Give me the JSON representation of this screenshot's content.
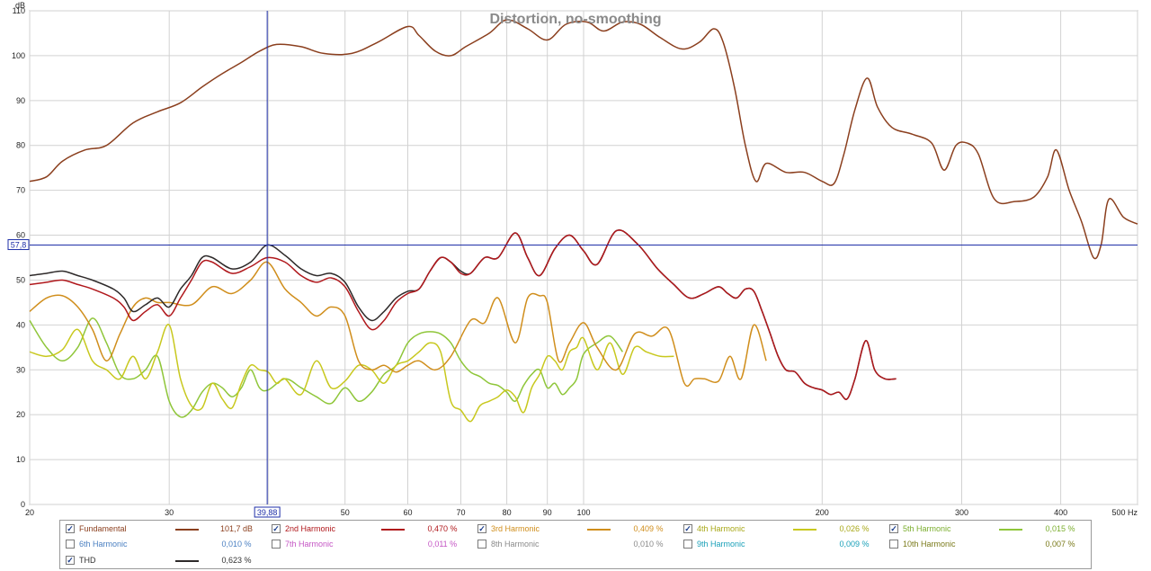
{
  "chart_data": {
    "type": "line",
    "title": "Distortion, no-smoothing",
    "ylabel": "dB",
    "xunit": "Hz",
    "xscale": "log",
    "xlim": [
      20,
      500
    ],
    "ylim": [
      0,
      110
    ],
    "grid": true,
    "x_ticks": [
      20,
      30,
      40,
      50,
      60,
      70,
      80,
      90,
      100,
      200,
      300,
      400,
      500
    ],
    "x_tick_labels": [
      "20",
      "30",
      "",
      "50",
      "60",
      "70",
      "80",
      "90",
      "100",
      "200",
      "300",
      "400",
      "500 Hz"
    ],
    "y_ticks": [
      0,
      10,
      20,
      30,
      40,
      50,
      60,
      70,
      80,
      90,
      100,
      110
    ],
    "cursor": {
      "x": 39.88,
      "y": 57.8,
      "x_label": "39,88",
      "y_label": "57,8",
      "color": "#1f2fa8"
    },
    "series": [
      {
        "name": "Fundamental",
        "color": "#8b3f1e",
        "x": [
          20,
          21,
          22,
          23.5,
          25,
          27,
          29,
          31,
          33,
          35,
          37,
          39,
          41,
          44,
          47,
          51,
          55,
          60,
          62,
          65,
          68,
          71,
          76,
          80,
          85,
          90,
          95,
          101,
          106,
          112,
          118,
          125,
          133,
          140,
          146,
          150,
          155,
          160,
          165,
          170,
          180,
          190,
          200,
          207,
          213,
          220,
          228,
          235,
          245,
          260,
          275,
          285,
          295,
          305,
          315,
          330,
          350,
          370,
          385,
          395,
          410,
          425,
          440,
          450,
          460,
          480,
          500
        ],
        "y": [
          72,
          73,
          76.5,
          79,
          80,
          85,
          87.5,
          89.5,
          93,
          96,
          98.5,
          101,
          102.5,
          102,
          100.5,
          100.5,
          103,
          106.5,
          104.5,
          101,
          100,
          102,
          105,
          108,
          106,
          103.5,
          107,
          107.5,
          105.5,
          107.5,
          107,
          104,
          101.5,
          103,
          106,
          103,
          93,
          80,
          72,
          76,
          74,
          74,
          72,
          71.5,
          78,
          88,
          95,
          88.5,
          84,
          82.5,
          80.5,
          74.5,
          80,
          80.5,
          78,
          68,
          67.5,
          68.5,
          73,
          79,
          70,
          63,
          55,
          58,
          68,
          64,
          62.5
        ]
      },
      {
        "name": "2nd Harmonic",
        "color": "#b0181c",
        "x": [
          20,
          21,
          22,
          23,
          24,
          25.5,
          26.3,
          27,
          28,
          29,
          30,
          31,
          32,
          33,
          34,
          36,
          38,
          39.88,
          42,
          44,
          46,
          48,
          50,
          52,
          54,
          56,
          58,
          60,
          62,
          64,
          66,
          68,
          70,
          72,
          75,
          78,
          82,
          85,
          88,
          92,
          96,
          100,
          104,
          110,
          117,
          124,
          130,
          136,
          142,
          148,
          152,
          156,
          160,
          164,
          168,
          172,
          176,
          180,
          185,
          190,
          195,
          200,
          205,
          210,
          215,
          220,
          227,
          233,
          240,
          248
        ],
        "y": [
          49,
          49.5,
          50,
          49,
          48,
          46,
          44,
          41,
          43,
          44.5,
          42,
          46,
          50,
          54,
          54,
          51.5,
          53,
          55,
          54,
          51,
          49.5,
          50.5,
          48.5,
          43,
          39,
          41,
          45,
          47,
          48,
          52,
          55,
          54,
          51.5,
          51.5,
          55,
          55,
          60.5,
          55,
          51,
          57,
          60,
          56.5,
          53.5,
          61,
          58,
          52.5,
          49,
          46,
          47,
          48.5,
          47,
          46,
          48,
          47.5,
          43,
          38,
          33,
          30,
          29.5,
          27,
          26,
          25.5,
          24.5,
          25,
          23.5,
          28,
          36.5,
          30,
          28,
          28
        ]
      },
      {
        "name": "3rd Harmonic",
        "color": "#d08e1c",
        "x": [
          20,
          21,
          22,
          23,
          24,
          25,
          26,
          27,
          28,
          29,
          30,
          32,
          34,
          36,
          38,
          39.88,
          42,
          44,
          46,
          48,
          50,
          52,
          54,
          56,
          58,
          60,
          62,
          65,
          68,
          72,
          75,
          78,
          82,
          85,
          88,
          90,
          93,
          96,
          100,
          104,
          110,
          116,
          122,
          128,
          134,
          138,
          142,
          148,
          153,
          158,
          164,
          170
        ],
        "y": [
          43,
          46,
          46.5,
          44,
          39,
          32,
          38,
          44,
          46,
          45,
          45,
          44.5,
          48.5,
          47,
          50,
          54,
          48,
          45,
          42,
          44,
          42,
          32,
          30,
          31,
          29.5,
          31,
          32,
          30,
          33,
          41,
          40.5,
          46,
          36,
          46,
          46.5,
          45,
          32,
          36,
          40.5,
          35,
          30,
          38,
          37.5,
          39,
          27,
          28,
          28,
          27.5,
          33,
          28,
          40,
          32
        ]
      },
      {
        "name": "4th Harmonic",
        "color": "#c8c81e",
        "x": [
          20,
          21,
          22,
          23,
          24,
          25,
          26,
          27,
          28,
          29,
          30,
          31,
          32,
          33,
          34,
          35,
          36,
          37,
          38,
          39,
          40,
          41,
          42,
          44,
          46,
          48,
          50,
          52,
          54,
          56,
          58,
          60,
          62,
          64,
          66,
          68,
          70,
          72,
          74,
          76,
          78,
          80,
          82,
          84,
          86,
          88,
          90,
          92,
          94,
          96,
          98,
          100,
          104,
          108,
          112,
          116,
          120,
          125,
          130
        ],
        "y": [
          34,
          33,
          34.5,
          39,
          32,
          30,
          28,
          33,
          28,
          34,
          40,
          28,
          22,
          21.5,
          27,
          23.5,
          21.5,
          27,
          31,
          30,
          29.5,
          27,
          28,
          24.5,
          32,
          26,
          27.5,
          31,
          30,
          27,
          31,
          32,
          34,
          36,
          34,
          23,
          21,
          18.5,
          22,
          23,
          24,
          25.5,
          24,
          20.5,
          26,
          29,
          33,
          32,
          30,
          34,
          35,
          37,
          30,
          36,
          29,
          35,
          34,
          33,
          33
        ]
      },
      {
        "name": "5th Harmonic",
        "color": "#8fc63a",
        "x": [
          20,
          21,
          22,
          23,
          24,
          25,
          26,
          27,
          28,
          29,
          30,
          31,
          32,
          33,
          34,
          35,
          36,
          37,
          38,
          39,
          40,
          42,
          44,
          46,
          48,
          50,
          52,
          54,
          56,
          58,
          60,
          62,
          64,
          66,
          68,
          70,
          72,
          74,
          76,
          78,
          80,
          82,
          84,
          86,
          88,
          90,
          92,
          94,
          96,
          98,
          100,
          104,
          108,
          112
        ],
        "y": [
          41,
          35,
          32,
          35,
          41.5,
          36,
          29,
          28,
          30,
          33,
          23,
          19.5,
          21,
          25,
          27,
          26,
          24,
          26,
          30,
          26,
          25.5,
          28,
          26,
          24,
          22.5,
          26,
          23,
          25,
          29,
          31,
          36,
          38,
          38.5,
          38,
          36,
          32,
          29.5,
          28.5,
          27,
          26.5,
          25,
          23,
          26.5,
          29,
          30,
          26,
          27,
          24.5,
          26,
          28,
          33.5,
          36,
          37.5,
          34
        ]
      },
      {
        "name": "THD",
        "color": "#2e2a2a",
        "x": [
          20,
          21,
          22,
          23,
          24,
          25.5,
          26.3,
          27,
          28,
          29,
          30,
          31,
          32,
          33,
          34,
          36,
          38,
          39.88,
          42,
          44,
          46,
          48,
          50,
          52,
          54,
          56,
          58,
          60,
          62,
          64,
          66,
          68,
          70,
          72,
          75,
          78,
          82,
          85,
          88,
          92,
          96,
          100,
          104,
          110,
          117,
          124,
          130,
          136,
          142,
          148,
          152,
          156,
          160,
          164,
          168,
          172,
          176,
          180,
          185,
          190,
          195,
          200,
          205,
          210,
          215,
          220,
          227,
          233,
          240,
          248
        ],
        "y": [
          51,
          51.5,
          52,
          51,
          50,
          48,
          46,
          43,
          44.5,
          46,
          44,
          48,
          51,
          55,
          55,
          52.5,
          54,
          57.8,
          55.5,
          52.5,
          51,
          51.5,
          49.5,
          44,
          41,
          43,
          46,
          47.5,
          48,
          52,
          55,
          54,
          52,
          51.5,
          55,
          55,
          60.5,
          55,
          51,
          57,
          60,
          56.5,
          53.5,
          61,
          58,
          52.5,
          49,
          46,
          47,
          48.5,
          47,
          46,
          48,
          47.5,
          43,
          38,
          33,
          30,
          29.5,
          27,
          26,
          25.5,
          24.5,
          25,
          23.5,
          28,
          36.5,
          30,
          28,
          28
        ]
      }
    ]
  },
  "legend": {
    "items": [
      {
        "label": "Fundamental",
        "value": "101,7 dB",
        "checked": true,
        "color": "#8b3f1e",
        "text_color": "#8b3f1e"
      },
      {
        "label": "2nd Harmonic",
        "value": "0,470 %",
        "checked": true,
        "color": "#b0181c",
        "text_color": "#b0181c"
      },
      {
        "label": "3rd Harmonic",
        "value": "0,409 %",
        "checked": true,
        "color": "#d08e1c",
        "text_color": "#d08e1c"
      },
      {
        "label": "4th Harmonic",
        "value": "0,026 %",
        "checked": true,
        "color": "#c8c81e",
        "text_color": "#a8a818"
      },
      {
        "label": "5th Harmonic",
        "value": "0,015 %",
        "checked": true,
        "color": "#8fc63a",
        "text_color": "#7bae2e"
      },
      {
        "label": "6th Harmonic",
        "value": "0,010 %",
        "checked": false,
        "color": "",
        "text_color": "#4a7fc1"
      },
      {
        "label": "7th Harmonic",
        "value": "0,011 %",
        "checked": false,
        "color": "",
        "text_color": "#c455c4"
      },
      {
        "label": "8th Harmonic",
        "value": "0,010 %",
        "checked": false,
        "color": "",
        "text_color": "#8a8a8a"
      },
      {
        "label": "9th Harmonic",
        "value": "0,009 %",
        "checked": false,
        "color": "",
        "text_color": "#1aa0b8"
      },
      {
        "label": "10th Harmonic",
        "value": "0,007 %",
        "checked": false,
        "color": "",
        "text_color": "#7a7a1a"
      },
      {
        "label": "THD",
        "value": "0,623 %",
        "checked": true,
        "color": "#2e2a2a",
        "text_color": "#333333"
      }
    ],
    "checkmark": "✓"
  }
}
